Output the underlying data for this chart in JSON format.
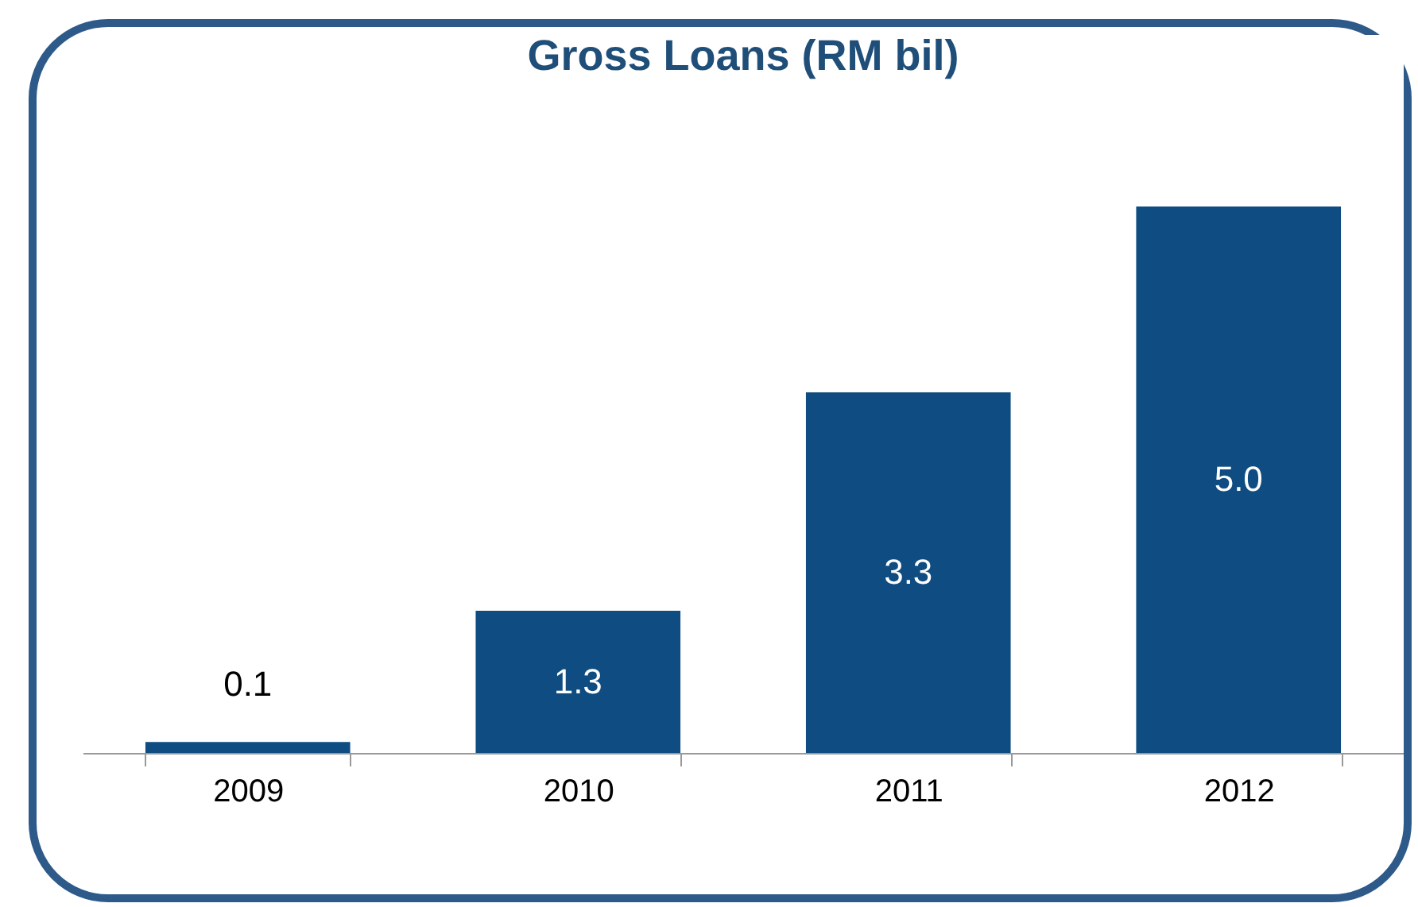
{
  "chart_data": {
    "type": "bar",
    "title": "Gross Loans (RM bil)",
    "categories": [
      "2009",
      "2010",
      "2011",
      "2012"
    ],
    "values": [
      0.1,
      1.3,
      3.3,
      5.0
    ],
    "value_labels": [
      "0.1",
      "1.3",
      "3.3",
      "5.0"
    ],
    "color": "#0f4c81",
    "grid": false
  }
}
